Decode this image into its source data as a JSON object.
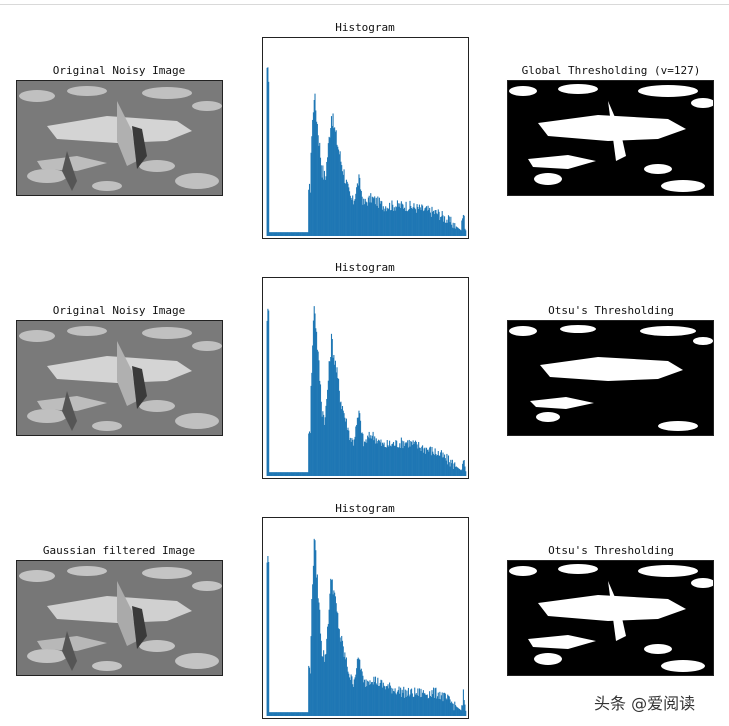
{
  "rows": [
    {
      "left_title": "Original Noisy Image",
      "hist_title": "Histogram",
      "right_title": "Global Thresholding (v=127)"
    },
    {
      "left_title": "Original Noisy Image",
      "hist_title": "Histogram",
      "right_title": "Otsu's Thresholding"
    },
    {
      "left_title": "Gaussian filtered Image",
      "hist_title": "Histogram",
      "right_title": "Otsu's Thresholding"
    }
  ],
  "chart_data": [
    {
      "type": "bar",
      "title": "Histogram",
      "color": "#1f77b4",
      "xlim": [
        0,
        256
      ],
      "peaks": [
        {
          "x": 3,
          "y": 0.85
        },
        {
          "x": 62,
          "y": 0.75
        },
        {
          "x": 84,
          "y": 0.64
        },
        {
          "x": 119,
          "y": 0.3
        },
        {
          "x": 135,
          "y": 0.2
        },
        {
          "x": 180,
          "y": 0.16
        },
        {
          "x": 252,
          "y": 0.12
        }
      ]
    },
    {
      "type": "bar",
      "title": "Histogram",
      "color": "#1f77b4",
      "xlim": [
        0,
        256
      ],
      "peaks": [
        {
          "x": 3,
          "y": 0.85
        },
        {
          "x": 62,
          "y": 0.92
        },
        {
          "x": 84,
          "y": 0.72
        },
        {
          "x": 119,
          "y": 0.33
        },
        {
          "x": 135,
          "y": 0.22
        },
        {
          "x": 180,
          "y": 0.18
        },
        {
          "x": 252,
          "y": 0.1
        }
      ]
    },
    {
      "type": "bar",
      "title": "Histogram",
      "color": "#1f77b4",
      "xlim": [
        0,
        256
      ],
      "peaks": [
        {
          "x": 3,
          "y": 0.82
        },
        {
          "x": 62,
          "y": 0.95
        },
        {
          "x": 84,
          "y": 0.74
        },
        {
          "x": 119,
          "y": 0.31
        },
        {
          "x": 135,
          "y": 0.2
        },
        {
          "x": 180,
          "y": 0.12
        },
        {
          "x": 252,
          "y": 0.11
        }
      ]
    }
  ],
  "watermark": "头条 @爱阅读"
}
